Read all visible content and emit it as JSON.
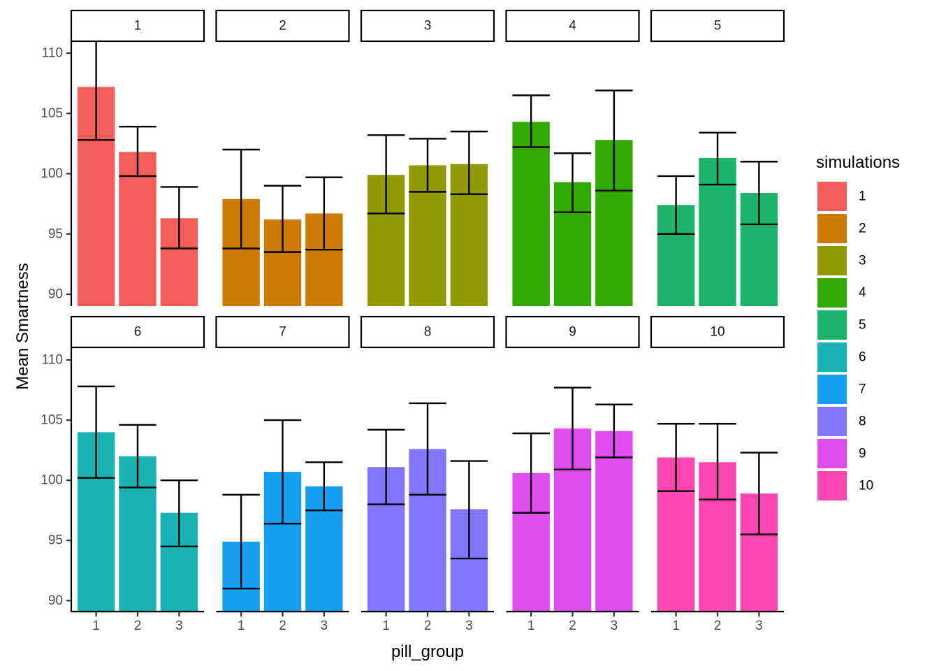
{
  "chart_data": {
    "type": "bar",
    "facet_by": "simulations",
    "facets": [
      "1",
      "2",
      "3",
      "4",
      "5",
      "6",
      "7",
      "8",
      "9",
      "10"
    ],
    "categories": [
      "1",
      "2",
      "3"
    ],
    "xlabel": "pill_group",
    "ylabel": "Mean Smartness",
    "yticks": [
      90,
      95,
      100,
      105,
      110
    ],
    "ylim": [
      89.5,
      111
    ],
    "grid": false,
    "legend": {
      "title": "simulations",
      "position": "right",
      "entries": [
        {
          "label": "1",
          "color": "#F35E5A"
        },
        {
          "label": "2",
          "color": "#CD7B04"
        },
        {
          "label": "3",
          "color": "#929A03"
        },
        {
          "label": "4",
          "color": "#33AA04"
        },
        {
          "label": "5",
          "color": "#1BB46A"
        },
        {
          "label": "6",
          "color": "#19B2B5"
        },
        {
          "label": "7",
          "color": "#169EF1"
        },
        {
          "label": "8",
          "color": "#8077FD"
        },
        {
          "label": "9",
          "color": "#DF4CF0"
        },
        {
          "label": "10",
          "color": "#FB46B2"
        }
      ]
    },
    "series": [
      {
        "name": "1",
        "values": [
          107.2,
          101.8,
          96.3
        ],
        "lower": [
          102.8,
          99.8,
          93.8
        ],
        "upper": [
          111.6,
          103.9,
          98.9
        ]
      },
      {
        "name": "2",
        "values": [
          97.9,
          96.2,
          96.7
        ],
        "lower": [
          93.8,
          93.5,
          93.7
        ],
        "upper": [
          102.0,
          99.0,
          99.7
        ]
      },
      {
        "name": "3",
        "values": [
          99.9,
          100.7,
          100.8
        ],
        "lower": [
          96.7,
          98.5,
          98.3
        ],
        "upper": [
          103.2,
          102.9,
          103.5
        ]
      },
      {
        "name": "4",
        "values": [
          104.3,
          99.3,
          102.8
        ],
        "lower": [
          102.2,
          96.8,
          98.6
        ],
        "upper": [
          106.5,
          101.7,
          106.9
        ]
      },
      {
        "name": "5",
        "values": [
          97.4,
          101.3,
          98.4
        ],
        "lower": [
          95.0,
          99.1,
          95.8
        ],
        "upper": [
          99.8,
          103.4,
          101.0
        ]
      },
      {
        "name": "6",
        "values": [
          104.0,
          102.0,
          97.3
        ],
        "lower": [
          100.2,
          99.4,
          94.5
        ],
        "upper": [
          107.8,
          104.6,
          100.0
        ]
      },
      {
        "name": "7",
        "values": [
          94.9,
          100.7,
          99.5
        ],
        "lower": [
          91.0,
          96.4,
          97.5
        ],
        "upper": [
          98.8,
          105.0,
          101.5
        ]
      },
      {
        "name": "8",
        "values": [
          101.1,
          102.6,
          97.6
        ],
        "lower": [
          98.0,
          98.8,
          93.5
        ],
        "upper": [
          104.2,
          106.4,
          101.6
        ]
      },
      {
        "name": "9",
        "values": [
          100.6,
          104.3,
          104.1
        ],
        "lower": [
          97.3,
          100.9,
          101.9
        ],
        "upper": [
          103.9,
          107.7,
          106.3
        ]
      },
      {
        "name": "10",
        "values": [
          101.9,
          101.5,
          98.9
        ],
        "lower": [
          99.1,
          98.4,
          95.5
        ],
        "upper": [
          104.7,
          104.7,
          102.3
        ]
      }
    ]
  }
}
